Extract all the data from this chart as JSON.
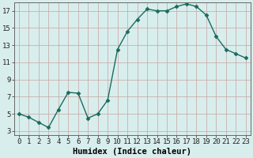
{
  "x": [
    0,
    1,
    2,
    3,
    4,
    5,
    6,
    7,
    8,
    9,
    10,
    11,
    12,
    13,
    14,
    15,
    16,
    17,
    18,
    19,
    20,
    21,
    22,
    23
  ],
  "y": [
    5.0,
    4.6,
    4.0,
    3.4,
    5.5,
    7.5,
    7.4,
    4.5,
    5.0,
    6.6,
    12.5,
    14.6,
    16.0,
    17.2,
    17.0,
    17.0,
    17.5,
    17.8,
    17.5,
    16.5,
    14.0,
    12.5,
    12.0,
    11.5
  ],
  "line_color": "#1a6b5e",
  "marker": "D",
  "marker_size": 2.5,
  "bg_color": "#d8eeed",
  "grid_color_major": "#c4d8d6",
  "grid_color_minor": "#daecea",
  "xlabel": "Humidex (Indice chaleur)",
  "xlim": [
    -0.5,
    23.5
  ],
  "ylim": [
    2.5,
    18.0
  ],
  "yticks": [
    3,
    5,
    7,
    9,
    11,
    13,
    15,
    17
  ],
  "xticks": [
    0,
    1,
    2,
    3,
    4,
    5,
    6,
    7,
    8,
    9,
    10,
    11,
    12,
    13,
    14,
    15,
    16,
    17,
    18,
    19,
    20,
    21,
    22,
    23
  ],
  "xlabel_fontsize": 7.5,
  "tick_fontsize": 6.5,
  "linewidth": 1.0
}
